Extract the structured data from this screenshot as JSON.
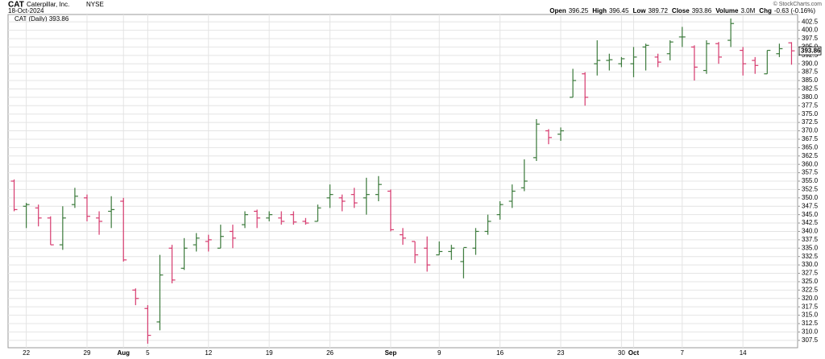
{
  "header": {
    "symbol": "CAT",
    "name": "Caterpillar, Inc.",
    "exchange": "NYSE",
    "date": "18-Oct-2024",
    "copyright": "© StockCharts.com",
    "quote": [
      {
        "label": "Open",
        "value": "396.25"
      },
      {
        "label": "High",
        "value": "396.45"
      },
      {
        "label": "Low",
        "value": "389.72"
      },
      {
        "label": "Close",
        "value": "393.86"
      },
      {
        "label": "Volume",
        "value": "3.0M"
      },
      {
        "label": "Chg",
        "value": "-0.63 (-0.16%)"
      }
    ]
  },
  "chart_data": {
    "type": "ohlc",
    "legend": "CAT (Daily) 393.86",
    "up_color": "#3b7a3b",
    "down_color": "#d63a6e",
    "grid": true,
    "categories": [
      null,
      "22",
      null,
      null,
      null,
      null,
      "29",
      null,
      null,
      "Aug",
      null,
      "5",
      null,
      null,
      null,
      null,
      "12",
      null,
      null,
      null,
      null,
      "19",
      null,
      null,
      null,
      null,
      "26",
      null,
      null,
      null,
      null,
      "Sep",
      null,
      null,
      null,
      "9",
      null,
      null,
      null,
      null,
      "16",
      null,
      null,
      null,
      null,
      "23",
      null,
      null,
      null,
      null,
      "30",
      "Oct",
      null,
      null,
      null,
      "7",
      null,
      null,
      null,
      null,
      "14",
      null,
      null,
      null,
      null
    ],
    "open": [
      355,
      347.5,
      347,
      344,
      336,
      348,
      350,
      344,
      346,
      349,
      322.5,
      317,
      313,
      335,
      329,
      336,
      337,
      335,
      340,
      342,
      346,
      344,
      344,
      345,
      343,
      343,
      350,
      350,
      351,
      350,
      351,
      352,
      339,
      337,
      335,
      333,
      334,
      331,
      335,
      340,
      345,
      349,
      353,
      362,
      370,
      369,
      380,
      387,
      390,
      391,
      390,
      390,
      395,
      392,
      393,
      398,
      395,
      388,
      396,
      397,
      394,
      391,
      387,
      393,
      396.25
    ],
    "high": [
      355.5,
      348.5,
      348,
      344.5,
      347.5,
      353,
      351,
      346,
      350.5,
      350,
      323,
      318,
      333,
      336,
      338,
      339.5,
      339,
      342,
      342,
      346,
      346.5,
      346,
      346,
      346,
      344,
      348,
      354,
      351,
      353,
      356,
      356.5,
      352.5,
      341,
      337,
      338.5,
      337,
      336,
      335,
      341,
      345,
      349,
      354,
      361.5,
      373.5,
      370.5,
      371,
      388.5,
      387.5,
      397,
      393,
      392,
      395,
      396,
      393,
      397,
      401,
      395.5,
      397,
      396.5,
      403.5,
      395,
      392,
      394,
      396,
      396.45
    ],
    "low": [
      346,
      341,
      341.5,
      336,
      334.5,
      347,
      343,
      339,
      341,
      331,
      318,
      306.5,
      310.5,
      324.5,
      328.5,
      334,
      334,
      335,
      335,
      341,
      341,
      343,
      342,
      342,
      342,
      343,
      347,
      346,
      347,
      345,
      349,
      340,
      336,
      330.5,
      328,
      333,
      331.5,
      326,
      333,
      339,
      343.5,
      347,
      352,
      361,
      366,
      367,
      380,
      377.5,
      386.5,
      388,
      389,
      386,
      388,
      389,
      391,
      395,
      385,
      387,
      390,
      395,
      386.5,
      387,
      387,
      392,
      389.72
    ],
    "close": [
      346.5,
      348,
      344,
      336,
      344,
      350.5,
      344.5,
      343,
      346.5,
      331.5,
      320,
      309,
      327,
      325.5,
      335,
      338,
      337.5,
      338.5,
      338,
      345,
      344,
      345,
      343,
      342.8,
      342.5,
      347,
      351,
      349,
      348.5,
      351,
      354,
      340.5,
      338,
      333,
      330,
      334,
      335,
      335.2,
      340,
      343,
      348,
      352,
      355,
      372,
      368,
      370,
      385,
      380,
      391,
      391.2,
      391.5,
      392,
      395.5,
      390.5,
      396.5,
      398,
      389,
      396,
      392,
      402,
      390,
      389.5,
      394,
      394.5,
      393.86
    ],
    "ylim": [
      305.3,
      404.7
    ],
    "yticks": [
      307.5,
      {
        "value": 310,
        "label": "310.0"
      },
      312.5,
      {
        "value": 315,
        "label": "315.0"
      },
      317.5,
      {
        "value": 320,
        "label": "320.0"
      },
      322.5,
      {
        "value": 325,
        "label": "325.0"
      },
      327.5,
      {
        "value": 330,
        "label": "330.0"
      },
      332.5,
      {
        "value": 335,
        "label": "335.0"
      },
      337.5,
      {
        "value": 340,
        "label": "340.0"
      },
      342.5,
      {
        "value": 345,
        "label": "345.0"
      },
      347.5,
      {
        "value": 350,
        "label": "350.0"
      },
      352.5,
      {
        "value": 355,
        "label": "355.0"
      },
      357.5,
      {
        "value": 360,
        "label": "360.0"
      },
      362.5,
      {
        "value": 365,
        "label": "365.0"
      },
      367.5,
      {
        "value": 370,
        "label": "370.0"
      },
      372.5,
      {
        "value": 375,
        "label": "375.0"
      },
      377.5,
      {
        "value": 380,
        "label": "380.0"
      },
      382.5,
      {
        "value": 385,
        "label": "385.0"
      },
      387.5,
      {
        "value": 390,
        "label": "390.0"
      },
      392.5,
      {
        "value": 395,
        "label": "395.0"
      },
      397.5,
      {
        "value": 400,
        "label": "400.0"
      },
      402.5
    ]
  }
}
